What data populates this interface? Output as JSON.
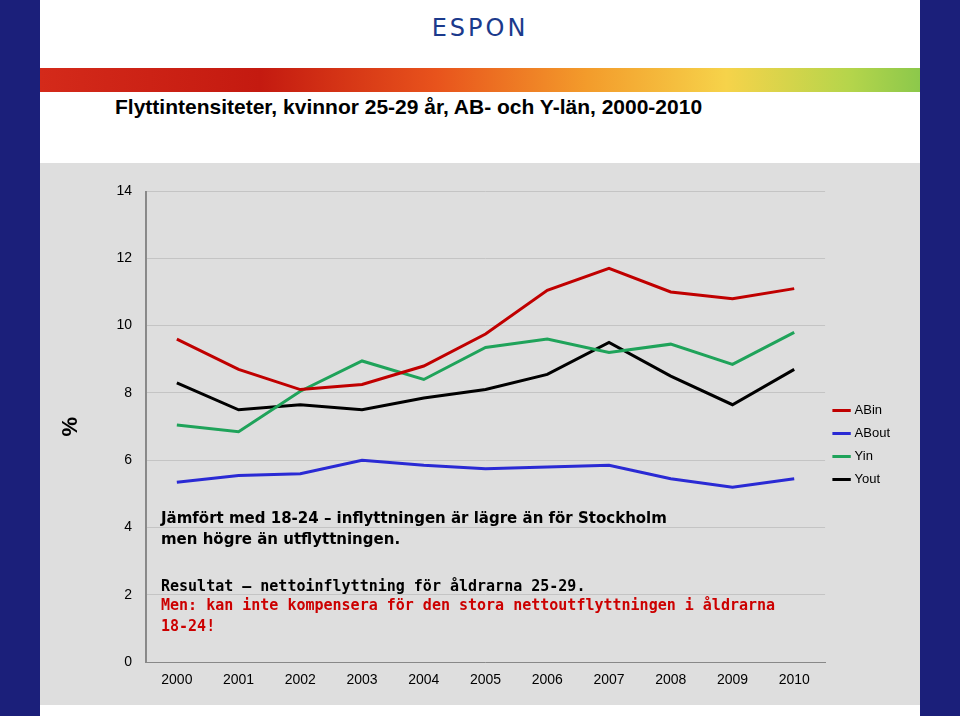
{
  "header": {
    "logo": "ESPON"
  },
  "chart_data": {
    "type": "line",
    "title": "Flyttintensiteter, kvinnor 25-29 år, AB- och Y-län, 2000-2010",
    "ylabel": "%",
    "categories": [
      "2000",
      "2001",
      "2002",
      "2003",
      "2004",
      "2005",
      "2006",
      "2007",
      "2008",
      "2009",
      "2010"
    ],
    "series": [
      {
        "name": "ABin",
        "color": "#c00000",
        "values": [
          9.6,
          8.7,
          8.1,
          8.25,
          8.8,
          9.75,
          11.05,
          11.7,
          11.0,
          10.8,
          11.1
        ]
      },
      {
        "name": "ABout",
        "color": "#2a2ad4",
        "values": [
          5.35,
          5.55,
          5.6,
          6.0,
          5.85,
          5.75,
          5.8,
          5.85,
          5.45,
          5.2,
          5.45
        ]
      },
      {
        "name": "Yin",
        "color": "#1fa35a",
        "values": [
          7.05,
          6.85,
          8.05,
          8.95,
          8.4,
          9.35,
          9.6,
          9.2,
          9.45,
          8.85,
          9.8
        ]
      },
      {
        "name": "Yout",
        "color": "#000000",
        "values": [
          8.3,
          7.5,
          7.65,
          7.5,
          7.85,
          8.1,
          8.55,
          9.5,
          8.5,
          7.65,
          8.7
        ]
      }
    ],
    "ylim": [
      0,
      14
    ],
    "yticks": [
      0,
      2,
      4,
      6,
      8,
      10,
      12,
      14
    ],
    "grid": true,
    "legend": "right",
    "annotations": [
      {
        "lines": [
          "Jämfört med 18-24 – inflyttningen är lägre än för Stockholm",
          "men högre än utflyttningen."
        ],
        "color": "#000000"
      },
      {
        "lines": [
          "Resultat – nettoinflyttning för åldrarna 25-29."
        ],
        "color": "#000000"
      },
      {
        "lines": [
          "Men: kan inte kompensera för den stora nettoutflyttningen i åldrarna",
          "18-24!"
        ],
        "color": "#cc0000"
      }
    ]
  }
}
